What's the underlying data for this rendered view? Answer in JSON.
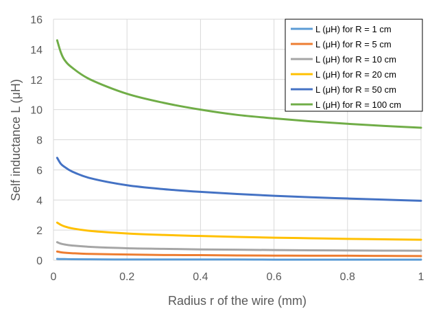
{
  "chart_data": {
    "type": "line",
    "title": "",
    "xlabel": "Radius r of the wire (mm)",
    "ylabel": "Self inductance L (μH)",
    "xlim": [
      0,
      1
    ],
    "ylim": [
      0,
      16
    ],
    "xticks": [
      0,
      0.2,
      0.4,
      0.6,
      0.8,
      1
    ],
    "xtick_labels": [
      "0",
      "0.2",
      "0.4",
      "0.6",
      "0.8",
      "1"
    ],
    "yticks": [
      0,
      2,
      4,
      6,
      8,
      10,
      12,
      14,
      16
    ],
    "ytick_labels": [
      "0",
      "2",
      "4",
      "6",
      "8",
      "10",
      "12",
      "14",
      "16"
    ],
    "grid": true,
    "legend_position": "top-right",
    "x": [
      0.01,
      0.02,
      0.03,
      0.05,
      0.1,
      0.2,
      0.3,
      0.4,
      0.5,
      0.6,
      0.7,
      0.8,
      0.9,
      1.0
    ],
    "series": [
      {
        "name": "L (μH) for R = 1 cm",
        "color": "#5B9BD5",
        "values": [
          0.09,
          0.08,
          0.08,
          0.07,
          0.06,
          0.05,
          0.05,
          0.05,
          0.05,
          0.04,
          0.04,
          0.04,
          0.04,
          0.04
        ]
      },
      {
        "name": "L (μH) for R = 5 cm",
        "color": "#ED7D31",
        "values": [
          0.58,
          0.53,
          0.5,
          0.47,
          0.42,
          0.38,
          0.35,
          0.34,
          0.32,
          0.31,
          0.3,
          0.3,
          0.29,
          0.28
        ]
      },
      {
        "name": "L (μH) for R = 10 cm",
        "color": "#A5A5A5",
        "values": [
          1.2,
          1.1,
          1.05,
          0.98,
          0.89,
          0.8,
          0.76,
          0.72,
          0.7,
          0.68,
          0.66,
          0.65,
          0.64,
          0.63
        ]
      },
      {
        "name": "L (μH) for R = 20 cm",
        "color": "#FFC000",
        "values": [
          2.5,
          2.35,
          2.25,
          2.12,
          1.95,
          1.78,
          1.68,
          1.61,
          1.55,
          1.5,
          1.46,
          1.42,
          1.39,
          1.36
        ]
      },
      {
        "name": "L (μH) for R = 50 cm",
        "color": "#4472C4",
        "values": [
          6.8,
          6.4,
          6.2,
          5.9,
          5.45,
          4.98,
          4.72,
          4.54,
          4.4,
          4.28,
          4.18,
          4.1,
          4.02,
          3.95
        ]
      },
      {
        "name": "L (μH) for R = 100 cm",
        "color": "#70AD47",
        "values": [
          14.6,
          13.8,
          13.3,
          12.8,
          12.0,
          11.05,
          10.45,
          10.0,
          9.65,
          9.42,
          9.22,
          9.06,
          8.92,
          8.8
        ]
      }
    ]
  }
}
